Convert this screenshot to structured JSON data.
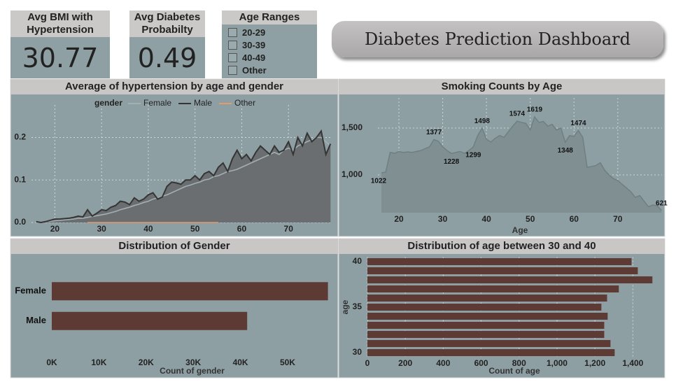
{
  "cards": [
    {
      "label": "Avg BMI with Hypertension",
      "value": 30.77
    },
    {
      "label": "Avg Diabetes Probabilty",
      "value": 0.49
    }
  ],
  "slicer": {
    "title": "Age Ranges",
    "items": [
      "20-29",
      "30-39",
      "40-49",
      "Other"
    ]
  },
  "header": {
    "title": "Diabetes Prediction Dashboard"
  },
  "chart_data": [
    {
      "type": "line",
      "title": "Average of hypertension by age and gender",
      "legend_title": "gender",
      "x": [
        16,
        17,
        18,
        19,
        20,
        21,
        22,
        23,
        24,
        25,
        26,
        27,
        28,
        29,
        30,
        31,
        32,
        33,
        34,
        35,
        36,
        37,
        38,
        39,
        40,
        41,
        42,
        43,
        44,
        45,
        46,
        47,
        48,
        49,
        50,
        51,
        52,
        53,
        54,
        55,
        56,
        57,
        58,
        59,
        60,
        61,
        62,
        63,
        64,
        65,
        66,
        67,
        68,
        69,
        70,
        71,
        72,
        73,
        74,
        75,
        76,
        77,
        78,
        79
      ],
      "series": [
        {
          "name": "Female",
          "color": "#a3b0b2",
          "values": [
            0,
            0.001,
            0.002,
            0.003,
            0.004,
            0.005,
            0.006,
            0.007,
            0.008,
            0.01,
            0.01,
            0.012,
            0.014,
            0.016,
            0.018,
            0.02,
            0.023,
            0.026,
            0.03,
            0.033,
            0.036,
            0.04,
            0.043,
            0.047,
            0.05,
            0.055,
            0.058,
            0.062,
            0.065,
            0.07,
            0.075,
            0.08,
            0.085,
            0.088,
            0.092,
            0.095,
            0.1,
            0.102,
            0.108,
            0.11,
            0.115,
            0.12,
            0.122,
            0.125,
            0.13,
            0.135,
            0.14,
            0.145,
            0.15,
            0.155,
            0.16,
            0.165,
            0.16,
            0.17,
            0.175,
            0.17,
            0.18,
            0.185,
            0.19,
            0.195,
            0.2,
            0.2,
            0.19,
            0.18
          ]
        },
        {
          "name": "Male",
          "color": "#353535",
          "fill": "#6a6e70",
          "values": [
            0.002,
            0,
            0.002,
            0.005,
            0.008,
            0.008,
            0.009,
            0.01,
            0.012,
            0.015,
            0.013,
            0.03,
            0.015,
            0.022,
            0.03,
            0.028,
            0.036,
            0.04,
            0.05,
            0.048,
            0.042,
            0.058,
            0.05,
            0.055,
            0.065,
            0.07,
            0.055,
            0.06,
            0.085,
            0.095,
            0.093,
            0.09,
            0.1,
            0.1,
            0.11,
            0.1,
            0.115,
            0.12,
            0.11,
            0.13,
            0.14,
            0.12,
            0.15,
            0.17,
            0.15,
            0.16,
            0.145,
            0.165,
            0.18,
            0.17,
            0.16,
            0.18,
            0.165,
            0.17,
            0.19,
            0.16,
            0.2,
            0.18,
            0.21,
            0.19,
            0.2,
            0.215,
            0.16,
            0.185
          ]
        },
        {
          "name": "Other",
          "color": "#e39a6c",
          "values": [
            null,
            null,
            null,
            null,
            null,
            null,
            null,
            null,
            null,
            null,
            null,
            0,
            0,
            0,
            0,
            0,
            0,
            0,
            0,
            0,
            0,
            0,
            0,
            0,
            0,
            0,
            0,
            0,
            0,
            0,
            0,
            0,
            0,
            0,
            0,
            0,
            0,
            0,
            0,
            0,
            null,
            null,
            null,
            null,
            null,
            null,
            null,
            null,
            null,
            null,
            null,
            null,
            null,
            null,
            null,
            null,
            null,
            null,
            null,
            null,
            null,
            null,
            null,
            null
          ]
        }
      ],
      "xlim": [
        15,
        79.4
      ],
      "xticks": [
        20,
        30,
        40,
        50,
        60,
        70
      ],
      "ylim": [
        0,
        0.26
      ],
      "yticks": [
        {
          "value": 0,
          "label": "0.0"
        },
        0.1,
        0.2
      ],
      "grid": true
    },
    {
      "type": "area",
      "title": "Smoking Counts by Age",
      "x_label": "Age",
      "color": "#7f8f92",
      "x": [
        16,
        17,
        18,
        19,
        20,
        21,
        22,
        23,
        24,
        25,
        26,
        27,
        28,
        29,
        30,
        31,
        32,
        33,
        34,
        35,
        36,
        37,
        38,
        39,
        40,
        41,
        42,
        43,
        44,
        45,
        46,
        47,
        48,
        49,
        50,
        51,
        52,
        53,
        54,
        55,
        56,
        57,
        58,
        59,
        60,
        61,
        62,
        63,
        64,
        65,
        66,
        67,
        68,
        69,
        70,
        71,
        72,
        73,
        74,
        75,
        76,
        77,
        78,
        79,
        80
      ],
      "values": [
        1022,
        1030,
        1240,
        1230,
        1250,
        1240,
        1245,
        1240,
        1250,
        1260,
        1280,
        1300,
        1377,
        1360,
        1300,
        1260,
        1228,
        1240,
        1250,
        1230,
        1260,
        1299,
        1420,
        1498,
        1380,
        1350,
        1390,
        1420,
        1400,
        1460,
        1520,
        1574,
        1560,
        1550,
        1480,
        1619,
        1560,
        1570,
        1520,
        1540,
        1480,
        1500,
        1348,
        1420,
        1410,
        1474,
        1400,
        1080,
        1090,
        1100,
        1130,
        1050,
        1000,
        960,
        940,
        900,
        860,
        820,
        760,
        780,
        720,
        660,
        680,
        670,
        621
      ],
      "value_labels": [
        "1022",
        null,
        null,
        null,
        null,
        null,
        null,
        null,
        null,
        null,
        null,
        null,
        "1377",
        null,
        null,
        null,
        "1228",
        null,
        null,
        null,
        null,
        "1299",
        null,
        "1498",
        null,
        null,
        null,
        null,
        null,
        null,
        null,
        "1574",
        null,
        null,
        null,
        "1619",
        null,
        null,
        null,
        null,
        null,
        null,
        "1348",
        null,
        null,
        "1474",
        null,
        null,
        null,
        null,
        null,
        null,
        null,
        null,
        null,
        null,
        null,
        null,
        null,
        null,
        null,
        null,
        null,
        null,
        "621"
      ],
      "xlim": [
        15.2,
        80.1
      ],
      "xticks": [
        20,
        30,
        40,
        50,
        60,
        70
      ],
      "ylim": [
        597,
        1746
      ],
      "yticks": [
        {
          "value": 1000,
          "label": "1,000"
        },
        {
          "value": 1500,
          "label": "1,500"
        }
      ],
      "grid": true
    },
    {
      "type": "bar",
      "orientation": "horizontal",
      "title": "Distribution of Gender",
      "x_label": "Count of gender",
      "color": "#5e3a35",
      "categories": [
        "Female",
        "Male"
      ],
      "values": [
        58552,
        41430
      ],
      "xlim": [
        0,
        59500
      ],
      "xticks": [
        {
          "value": 0,
          "label": "0K"
        },
        {
          "value": 10000,
          "label": "10K"
        },
        {
          "value": 20000,
          "label": "20K"
        },
        {
          "value": 30000,
          "label": "30K"
        },
        {
          "value": 40000,
          "label": "40K"
        },
        {
          "value": 50000,
          "label": "50K"
        }
      ],
      "grid": false
    },
    {
      "type": "bar",
      "orientation": "horizontal",
      "title": "Distribution of age between 30 and 40",
      "x_label": "Count of age",
      "y_label": "age",
      "color": "#5e3a35",
      "y": [
        30,
        31,
        32,
        33,
        34,
        35,
        36,
        37,
        38,
        39,
        40
      ],
      "values": [
        1304,
        1282,
        1249,
        1249,
        1267,
        1234,
        1264,
        1326,
        1503,
        1426,
        1393
      ],
      "xlim": [
        0,
        1550
      ],
      "xticks": [
        0,
        200,
        400,
        600,
        800,
        {
          "value": 1000,
          "label": "1,000"
        },
        {
          "value": 1200,
          "label": "1,200"
        },
        {
          "value": 1400,
          "label": "1,400"
        }
      ],
      "ylim": [
        29.5,
        40.5
      ],
      "yticks": [
        30,
        35,
        40
      ],
      "grid": true
    }
  ]
}
